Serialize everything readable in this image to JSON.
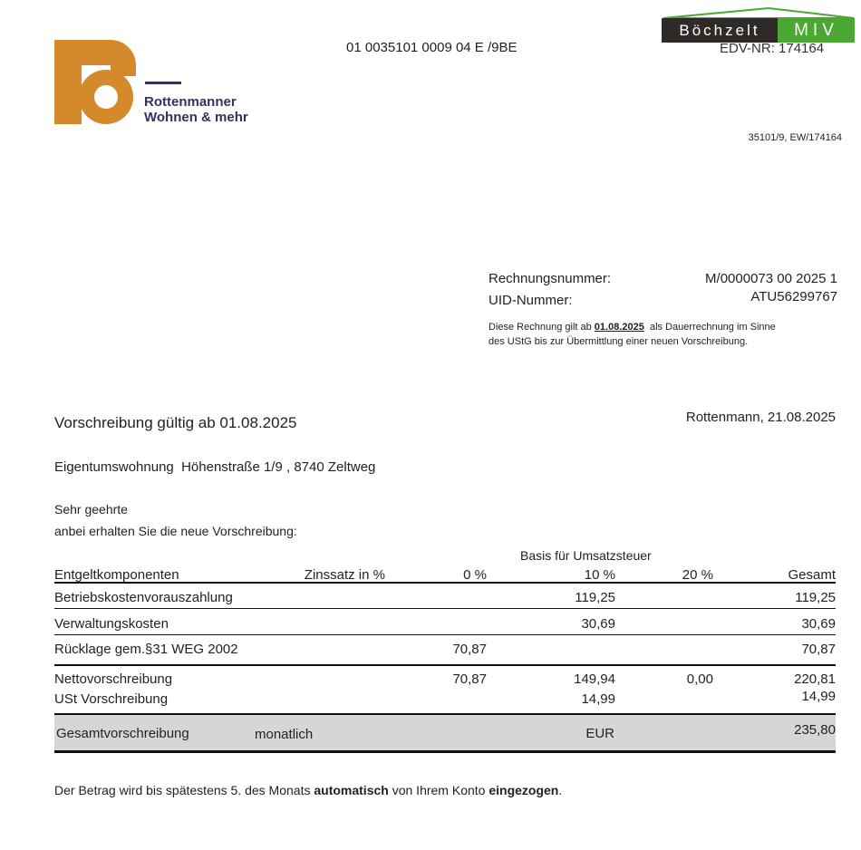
{
  "logo": {
    "line1": "Rottenmanner",
    "line2": "Wohnen & mehr",
    "colors": {
      "orange": "#d4892a",
      "purple": "#3a2d5c"
    }
  },
  "partner_logo": {
    "left": "Böchzelt",
    "right": "MIV",
    "colors": {
      "dark": "#2e2a28",
      "green": "#4aa832"
    }
  },
  "barcode_text": "01 0035101 0009 04 E /9BE",
  "edv_nr": "EDV-NR: 174164",
  "reference": "35101/9, EW/174164",
  "invoice": {
    "number_label": "Rechnungsnummer:",
    "number_value": "M/0000073 00 2025 1",
    "uid_label": "UID-Nummer:",
    "uid_value": "ATU56299767",
    "note_pre": "Diese Rechnung gilt ab ",
    "note_date": "01.08.2025",
    "note_post": "  als Dauerrechnung im Sinne",
    "note_line2": "des UStG bis zur Übermittlung einer neuen Vorschreibung."
  },
  "title": "Vorschreibung gültig ab 01.08.2025",
  "place_date": "Rottenmann, 21.08.2025",
  "property": "Eigentumswohnung  Höhenstraße 1/9 , 8740 Zeltweg",
  "salutation": "Sehr geehrte",
  "intro": "anbei erhalten Sie die neue Vorschreibung:",
  "table": {
    "group_header": "Basis für Umsatzsteuer",
    "headers": [
      "Entgeltkomponenten",
      "Zinssatz in %",
      "0 %",
      "10 %",
      "20 %",
      "Gesamt"
    ],
    "rows": [
      [
        "Betriebskostenvorauszahlung",
        "",
        "",
        "119,25",
        "",
        "119,25"
      ],
      [
        "Verwaltungskosten",
        "",
        "",
        "30,69",
        "",
        "30,69"
      ],
      [
        "Rücklage gem.§31 WEG 2002",
        "",
        "70,87",
        "",
        "",
        "70,87"
      ]
    ],
    "netto": [
      "Nettovorschreibung",
      "",
      "70,87",
      "149,94",
      "0,00",
      "220,81"
    ],
    "ust": [
      "USt Vorschreibung",
      "",
      "",
      "14,99",
      "",
      "14,99"
    ],
    "total": {
      "label": "Gesamtvorschreibung",
      "period": "monatlich",
      "currency": "EUR",
      "value": "235,80"
    }
  },
  "footer": {
    "pre": "Der Betrag wird bis spätestens 5. des Monats ",
    "b1": "automatisch",
    "mid": " von Ihrem Konto ",
    "b2": "eingezogen",
    "post": "."
  }
}
